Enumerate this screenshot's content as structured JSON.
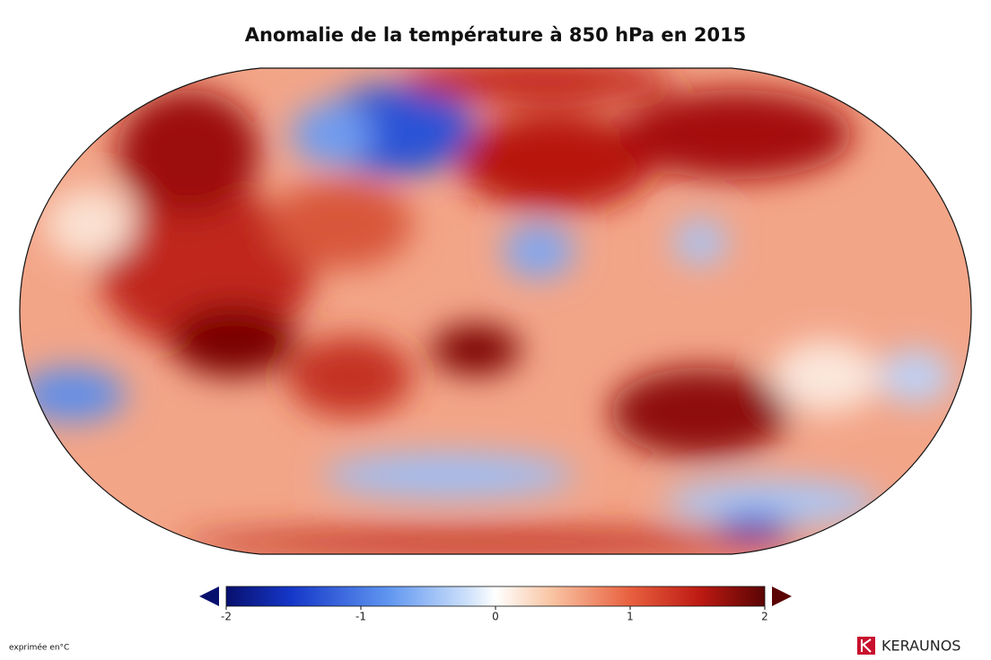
{
  "title": "Anomalie de la température à 850 hPa en 2015",
  "colorbar": {
    "lim": [
      -2,
      2
    ],
    "ticks": [
      -2,
      -1,
      0,
      1,
      2
    ]
  },
  "unit_note": "exprimée en°C",
  "brand": "KERAUNOS"
}
